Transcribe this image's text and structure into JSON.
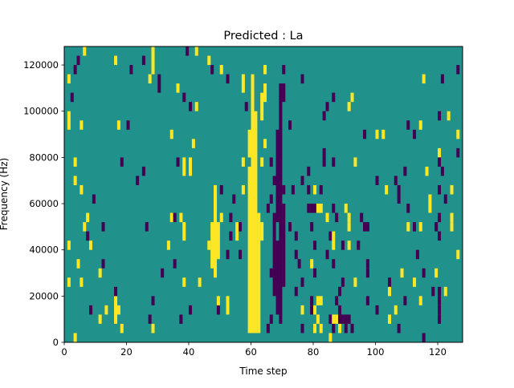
{
  "chart_data": {
    "type": "heatmap",
    "title": "Predicted : La",
    "xlabel": "Time step",
    "ylabel": "Frequency (Hz)",
    "xlim": [
      0,
      128
    ],
    "ylim": [
      0,
      128000
    ],
    "n_time_steps": 128,
    "n_freq_bins": 32,
    "freq_bin_hz": 4000,
    "x_ticks": [
      0,
      20,
      40,
      60,
      80,
      100,
      120
    ],
    "x_tick_labels": [
      "0",
      "20",
      "40",
      "60",
      "80",
      "100",
      "120"
    ],
    "y_ticks": [
      0,
      20000,
      40000,
      60000,
      80000,
      100000,
      120000
    ],
    "y_tick_labels": [
      "0",
      "20000",
      "40000",
      "60000",
      "80000",
      "100000",
      "120000"
    ],
    "colormap": {
      "0": "#440154",
      "1": "#21918c",
      "2": "#fde725"
    },
    "background_value": 1,
    "runs_format": "[time_step, freq_bin_start, freq_bin_end, value]",
    "runs": [
      [
        60,
        1,
        28,
        2
      ],
      [
        61,
        1,
        24,
        2
      ],
      [
        59,
        1,
        18,
        2
      ],
      [
        59,
        20,
        22,
        2
      ],
      [
        62,
        1,
        13,
        2
      ],
      [
        63,
        11,
        12,
        2
      ],
      [
        63,
        19,
        19,
        2
      ],
      [
        63,
        24,
        26,
        2
      ],
      [
        64,
        26,
        27,
        2
      ],
      [
        64,
        29,
        29,
        2
      ],
      [
        64,
        21,
        21,
        2
      ],
      [
        69,
        2,
        27,
        0
      ],
      [
        68,
        3,
        10,
        0
      ],
      [
        68,
        13,
        22,
        0
      ],
      [
        70,
        6,
        14,
        0
      ],
      [
        67,
        5,
        13,
        0
      ],
      [
        66,
        2,
        2,
        0
      ],
      [
        66,
        7,
        7,
        0
      ],
      [
        67,
        17,
        17,
        0
      ],
      [
        70,
        26,
        27,
        0
      ],
      [
        70,
        29,
        29,
        0
      ],
      [
        66,
        15,
        15,
        0
      ],
      [
        66,
        19,
        19,
        0
      ],
      [
        70,
        16,
        16,
        0
      ],
      [
        48,
        7,
        16,
        2
      ],
      [
        47,
        8,
        12,
        2
      ],
      [
        49,
        9,
        12,
        2
      ],
      [
        46,
        10,
        10,
        2
      ],
      [
        50,
        13,
        13,
        2
      ],
      [
        48,
        14,
        15,
        2
      ],
      [
        6,
        31,
        31,
        2
      ],
      [
        4,
        30,
        30,
        0
      ],
      [
        3,
        29,
        29,
        0
      ],
      [
        1,
        28,
        28,
        2
      ],
      [
        2,
        26,
        26,
        0
      ],
      [
        1,
        23,
        24,
        2
      ],
      [
        5,
        23,
        23,
        2
      ],
      [
        3,
        19,
        19,
        2
      ],
      [
        3,
        17,
        17,
        2
      ],
      [
        5,
        16,
        16,
        2
      ],
      [
        9,
        15,
        15,
        0
      ],
      [
        7,
        13,
        13,
        2
      ],
      [
        6,
        12,
        12,
        2
      ],
      [
        12,
        12,
        12,
        0
      ],
      [
        7,
        11,
        11,
        0
      ],
      [
        8,
        10,
        10,
        2
      ],
      [
        1,
        10,
        10,
        2
      ],
      [
        4,
        8,
        8,
        2
      ],
      [
        12,
        8,
        8,
        0
      ],
      [
        11,
        7,
        7,
        2
      ],
      [
        16,
        2,
        4,
        2
      ],
      [
        17,
        3,
        3,
        2
      ],
      [
        18,
        1,
        1,
        2
      ],
      [
        3,
        0,
        0,
        2
      ],
      [
        1,
        6,
        6,
        2
      ],
      [
        5,
        6,
        6,
        2
      ],
      [
        8,
        3,
        3,
        0
      ],
      [
        11,
        2,
        2,
        2
      ],
      [
        13,
        3,
        3,
        2
      ],
      [
        16,
        5,
        5,
        0
      ],
      [
        16,
        30,
        30,
        2
      ],
      [
        25,
        30,
        30,
        0
      ],
      [
        28,
        29,
        31,
        2
      ],
      [
        21,
        29,
        29,
        0
      ],
      [
        27,
        28,
        28,
        2
      ],
      [
        30,
        27,
        28,
        0
      ],
      [
        36,
        27,
        27,
        2
      ],
      [
        38,
        26,
        26,
        0
      ],
      [
        42,
        25,
        25,
        2
      ],
      [
        40,
        25,
        25,
        0
      ],
      [
        17,
        23,
        23,
        2
      ],
      [
        20,
        23,
        23,
        0
      ],
      [
        34,
        22,
        22,
        2
      ],
      [
        41,
        21,
        21,
        2
      ],
      [
        36,
        19,
        19,
        0
      ],
      [
        38,
        18,
        19,
        2
      ],
      [
        40,
        18,
        19,
        2
      ],
      [
        18,
        19,
        19,
        0
      ],
      [
        25,
        18,
        18,
        0
      ],
      [
        23,
        17,
        17,
        0
      ],
      [
        34,
        13,
        13,
        2
      ],
      [
        35,
        13,
        13,
        0
      ],
      [
        37,
        13,
        13,
        2
      ],
      [
        26,
        12,
        12,
        0
      ],
      [
        38,
        11,
        12,
        2
      ],
      [
        33,
        10,
        10,
        2
      ],
      [
        35,
        8,
        8,
        0
      ],
      [
        31,
        7,
        7,
        0
      ],
      [
        38,
        6,
        6,
        2
      ],
      [
        43,
        6,
        6,
        2
      ],
      [
        28,
        4,
        4,
        0
      ],
      [
        40,
        3,
        3,
        0
      ],
      [
        27,
        2,
        2,
        0
      ],
      [
        28,
        1,
        1,
        2
      ],
      [
        37,
        2,
        2,
        0
      ],
      [
        49,
        3,
        3,
        0
      ],
      [
        49,
        4,
        4,
        2
      ],
      [
        52,
        3,
        4,
        2
      ],
      [
        46,
        30,
        30,
        2
      ],
      [
        42,
        31,
        31,
        2
      ],
      [
        39,
        31,
        31,
        0
      ],
      [
        47,
        29,
        29,
        0
      ],
      [
        50,
        29,
        29,
        2
      ],
      [
        52,
        28,
        28,
        0
      ],
      [
        57,
        27,
        28,
        2
      ],
      [
        58,
        25,
        25,
        0
      ],
      [
        57,
        19,
        19,
        2
      ],
      [
        50,
        16,
        16,
        0
      ],
      [
        54,
        15,
        15,
        0
      ],
      [
        57,
        16,
        16,
        2
      ],
      [
        53,
        13,
        13,
        0
      ],
      [
        56,
        12,
        12,
        0
      ],
      [
        55,
        11,
        12,
        2
      ],
      [
        53,
        11,
        11,
        0
      ],
      [
        56,
        9,
        9,
        0
      ],
      [
        52,
        9,
        9,
        0
      ],
      [
        76,
        28,
        28,
        0
      ],
      [
        115,
        28,
        28,
        2
      ],
      [
        121,
        28,
        28,
        0
      ],
      [
        126,
        29,
        29,
        0
      ],
      [
        86,
        26,
        26,
        0
      ],
      [
        92,
        26,
        26,
        2
      ],
      [
        84,
        25,
        25,
        0
      ],
      [
        91,
        25,
        25,
        2
      ],
      [
        83,
        24,
        24,
        0
      ],
      [
        120,
        24,
        24,
        0
      ],
      [
        123,
        24,
        24,
        2
      ],
      [
        72,
        23,
        23,
        0
      ],
      [
        110,
        23,
        23,
        0
      ],
      [
        114,
        23,
        23,
        2
      ],
      [
        96,
        22,
        22,
        0
      ],
      [
        100,
        22,
        22,
        2
      ],
      [
        102,
        22,
        22,
        2
      ],
      [
        112,
        22,
        22,
        0
      ],
      [
        126,
        22,
        22,
        2
      ],
      [
        120,
        20,
        20,
        2
      ],
      [
        126,
        20,
        20,
        0
      ],
      [
        83,
        19,
        20,
        0
      ],
      [
        86,
        19,
        19,
        0
      ],
      [
        93,
        19,
        19,
        2
      ],
      [
        120,
        19,
        19,
        0
      ],
      [
        78,
        18,
        18,
        0
      ],
      [
        109,
        18,
        18,
        0
      ],
      [
        116,
        18,
        18,
        2
      ],
      [
        121,
        18,
        18,
        0
      ],
      [
        100,
        17,
        17,
        0
      ],
      [
        76,
        17,
        17,
        0
      ],
      [
        106,
        17,
        17,
        0
      ],
      [
        73,
        16,
        16,
        0
      ],
      [
        78,
        16,
        16,
        0
      ],
      [
        80,
        16,
        16,
        2
      ],
      [
        82,
        16,
        16,
        0
      ],
      [
        103,
        16,
        16,
        2
      ],
      [
        107,
        16,
        16,
        0
      ],
      [
        120,
        16,
        16,
        0
      ],
      [
        124,
        16,
        16,
        2
      ],
      [
        107,
        15,
        15,
        0
      ],
      [
        117,
        14,
        15,
        2
      ],
      [
        122,
        15,
        15,
        0
      ],
      [
        65,
        14,
        14,
        0
      ],
      [
        78,
        14,
        14,
        0
      ],
      [
        79,
        14,
        14,
        0
      ],
      [
        80,
        14,
        14,
        0
      ],
      [
        81,
        14,
        14,
        2
      ],
      [
        82,
        14,
        14,
        2
      ],
      [
        86,
        14,
        14,
        0
      ],
      [
        90,
        14,
        14,
        2
      ],
      [
        110,
        14,
        14,
        0
      ],
      [
        84,
        13,
        13,
        2
      ],
      [
        87,
        13,
        13,
        0
      ],
      [
        91,
        13,
        13,
        2
      ],
      [
        95,
        13,
        13,
        0
      ],
      [
        120,
        13,
        13,
        0
      ],
      [
        124,
        13,
        13,
        2
      ],
      [
        72,
        12,
        12,
        0
      ],
      [
        79,
        12,
        12,
        0
      ],
      [
        91,
        12,
        12,
        2
      ],
      [
        96,
        12,
        12,
        0
      ],
      [
        97,
        12,
        12,
        0
      ],
      [
        110,
        12,
        12,
        2
      ],
      [
        112,
        12,
        12,
        0
      ],
      [
        114,
        12,
        12,
        2
      ],
      [
        119,
        12,
        12,
        0
      ],
      [
        124,
        12,
        12,
        2
      ],
      [
        74,
        11,
        11,
        0
      ],
      [
        85,
        11,
        11,
        0
      ],
      [
        86,
        10,
        11,
        2
      ],
      [
        120,
        11,
        11,
        0
      ],
      [
        80,
        10,
        10,
        0
      ],
      [
        89,
        10,
        10,
        0
      ],
      [
        91,
        10,
        10,
        2
      ],
      [
        94,
        10,
        10,
        0
      ],
      [
        74,
        9,
        9,
        0
      ],
      [
        84,
        9,
        9,
        0
      ],
      [
        113,
        9,
        9,
        0
      ],
      [
        126,
        9,
        9,
        2
      ],
      [
        75,
        8,
        8,
        0
      ],
      [
        79,
        8,
        8,
        2
      ],
      [
        86,
        8,
        8,
        0
      ],
      [
        97,
        8,
        8,
        0
      ],
      [
        80,
        7,
        7,
        0
      ],
      [
        97,
        7,
        7,
        0
      ],
      [
        108,
        7,
        7,
        2
      ],
      [
        115,
        7,
        7,
        0
      ],
      [
        119,
        7,
        7,
        2
      ],
      [
        76,
        6,
        6,
        0
      ],
      [
        89,
        6,
        6,
        0
      ],
      [
        93,
        6,
        6,
        2
      ],
      [
        104,
        6,
        6,
        0
      ],
      [
        112,
        6,
        6,
        2
      ],
      [
        74,
        5,
        5,
        0
      ],
      [
        88,
        5,
        5,
        0
      ],
      [
        104,
        5,
        5,
        2
      ],
      [
        118,
        5,
        5,
        0
      ],
      [
        122,
        5,
        5,
        2
      ],
      [
        120,
        5,
        5,
        0
      ],
      [
        79,
        4,
        4,
        0
      ],
      [
        81,
        4,
        4,
        2
      ],
      [
        82,
        4,
        4,
        2
      ],
      [
        87,
        4,
        4,
        0
      ],
      [
        97,
        4,
        4,
        0
      ],
      [
        109,
        4,
        4,
        0
      ],
      [
        114,
        4,
        4,
        2
      ],
      [
        120,
        4,
        4,
        0
      ],
      [
        76,
        3,
        3,
        2
      ],
      [
        79,
        3,
        3,
        0
      ],
      [
        80,
        3,
        3,
        2
      ],
      [
        88,
        3,
        3,
        0
      ],
      [
        100,
        3,
        3,
        0
      ],
      [
        106,
        3,
        3,
        2
      ],
      [
        120,
        3,
        3,
        0
      ],
      [
        81,
        2,
        2,
        2
      ],
      [
        85,
        2,
        2,
        0
      ],
      [
        86,
        2,
        2,
        2
      ],
      [
        87,
        2,
        2,
        2
      ],
      [
        88,
        2,
        2,
        0
      ],
      [
        89,
        2,
        2,
        0
      ],
      [
        90,
        2,
        2,
        0
      ],
      [
        91,
        2,
        2,
        0
      ],
      [
        104,
        2,
        2,
        2
      ],
      [
        120,
        2,
        2,
        0
      ],
      [
        65,
        1,
        1,
        0
      ],
      [
        76,
        1,
        1,
        0
      ],
      [
        80,
        1,
        1,
        2
      ],
      [
        82,
        1,
        1,
        2
      ],
      [
        86,
        1,
        1,
        0
      ],
      [
        88,
        1,
        1,
        2
      ],
      [
        90,
        1,
        1,
        0
      ],
      [
        92,
        1,
        1,
        0
      ],
      [
        107,
        1,
        1,
        0
      ],
      [
        85,
        0,
        0,
        2
      ],
      [
        115,
        0,
        0,
        0
      ]
    ]
  }
}
